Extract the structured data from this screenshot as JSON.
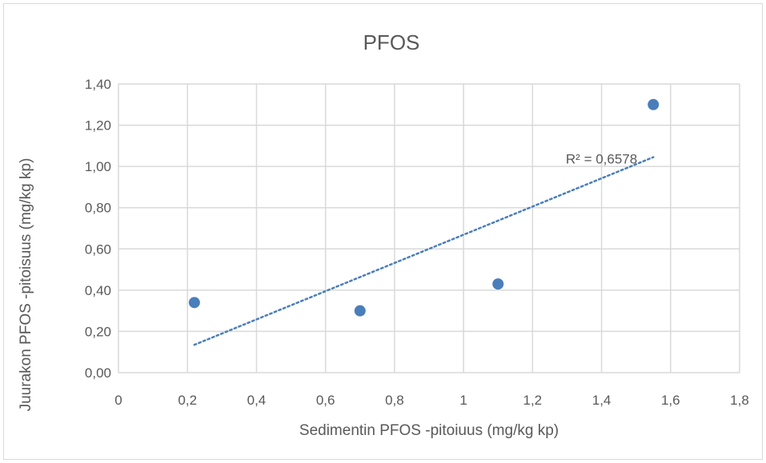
{
  "chart_data": {
    "type": "scatter",
    "title": "PFOS",
    "xlabel": "Sedimentin PFOS -pitoiuus (mg/kg kp)",
    "ylabel": "Juurakon PFOS -pitoisuus (mg/kg kp)",
    "xlim": [
      0,
      1.8
    ],
    "ylim": [
      0,
      1.4
    ],
    "x_ticks": [
      "0",
      "0,2",
      "0,4",
      "0,6",
      "0,8",
      "1",
      "1,2",
      "1,4",
      "1,6",
      "1,8"
    ],
    "y_ticks": [
      "0,00",
      "0,20",
      "0,40",
      "0,60",
      "0,80",
      "1,00",
      "1,20",
      "1,40"
    ],
    "grid": true,
    "legend": "none",
    "series": [
      {
        "points": [
          {
            "x": 0.22,
            "y": 0.34
          },
          {
            "x": 0.7,
            "y": 0.3
          },
          {
            "x": 1.1,
            "y": 0.43
          },
          {
            "x": 1.55,
            "y": 1.3
          }
        ],
        "color": "#4a7ebb"
      }
    ],
    "trendline": {
      "type": "linear",
      "x_range": [
        0.22,
        1.55
      ],
      "y_range": [
        0.135,
        1.045
      ],
      "style": "dotted",
      "color": "#4a7ebb",
      "label": "R² = 0,6578"
    }
  }
}
